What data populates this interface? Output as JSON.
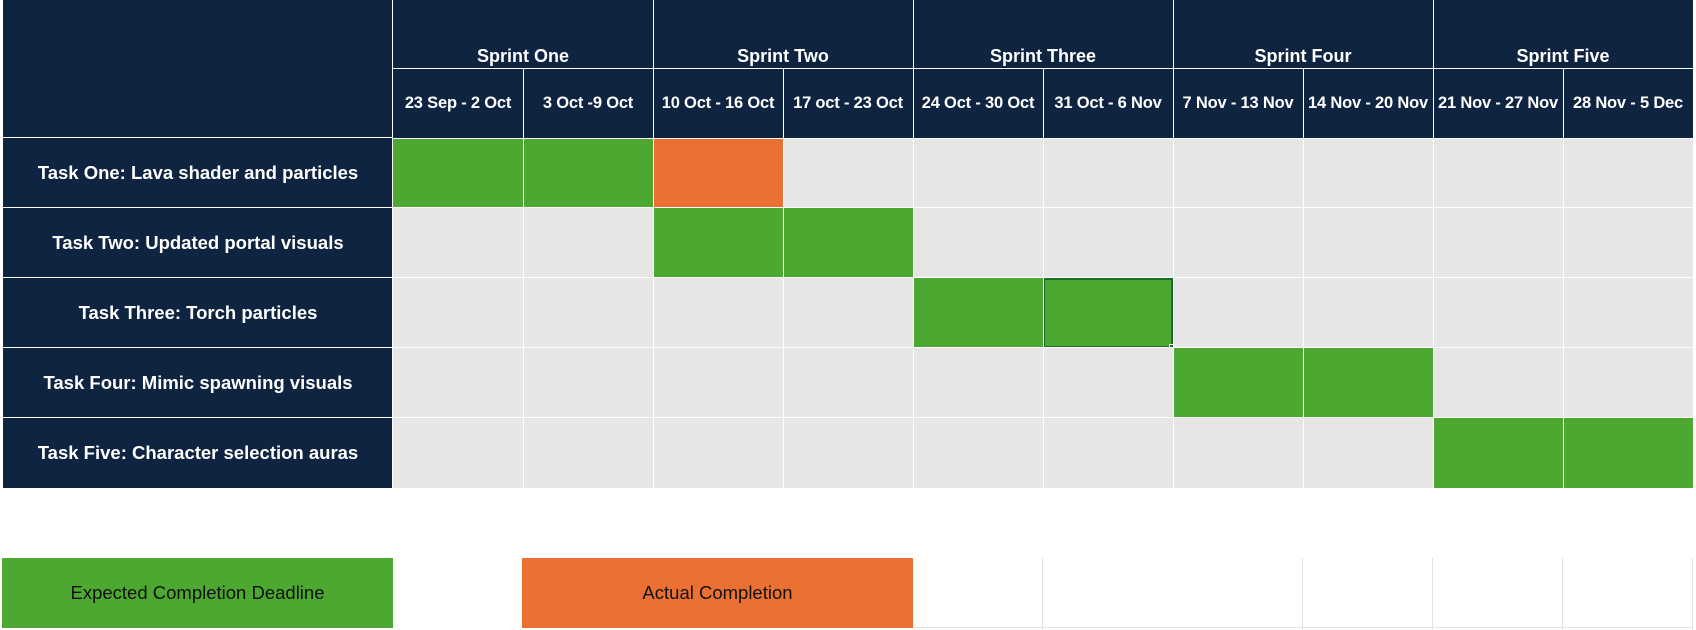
{
  "sprints": [
    {
      "label": "Sprint One"
    },
    {
      "label": "Sprint Two"
    },
    {
      "label": "Sprint Three"
    },
    {
      "label": "Sprint Four"
    },
    {
      "label": "Sprint Five"
    }
  ],
  "weeks": [
    {
      "label": "23 Sep - 2 Oct"
    },
    {
      "label": "3 Oct -9 Oct"
    },
    {
      "label": "10 Oct - 16 Oct"
    },
    {
      "label": "17 oct - 23 Oct"
    },
    {
      "label": "24 Oct - 30 Oct"
    },
    {
      "label": "31 Oct - 6 Nov"
    },
    {
      "label": "7 Nov - 13 Nov"
    },
    {
      "label": "14 Nov - 20 Nov"
    },
    {
      "label": "21 Nov - 27 Nov"
    },
    {
      "label": "28 Nov - 5 Dec"
    }
  ],
  "tasks": [
    {
      "label": "Task One: Lava shader and particles",
      "cells": [
        "green",
        "green",
        "orange",
        "",
        "",
        "",
        "",
        "",
        "",
        ""
      ]
    },
    {
      "label": "Task Two: Updated portal visuals",
      "cells": [
        "",
        "",
        "green",
        "green",
        "",
        "",
        "",
        "",
        "",
        ""
      ]
    },
    {
      "label": "Task Three: Torch particles",
      "cells": [
        "",
        "",
        "",
        "",
        "green",
        "green",
        "",
        "",
        "",
        ""
      ]
    },
    {
      "label": "Task Four: Mimic spawning visuals",
      "cells": [
        "",
        "",
        "",
        "",
        "",
        "",
        "green",
        "green",
        "",
        ""
      ]
    },
    {
      "label": "Task Five: Character selection auras",
      "cells": [
        "",
        "",
        "",
        "",
        "",
        "",
        "",
        "",
        "green",
        "green"
      ]
    }
  ],
  "selected_cell": {
    "row": 2,
    "col": 5
  },
  "legend": {
    "expected": "Expected Completion Deadline",
    "actual": "Actual Completion"
  },
  "colors": {
    "header": "#0e2440",
    "empty_cell": "#e6e6e6",
    "expected": "#4da831",
    "actual": "#ea7131"
  }
}
